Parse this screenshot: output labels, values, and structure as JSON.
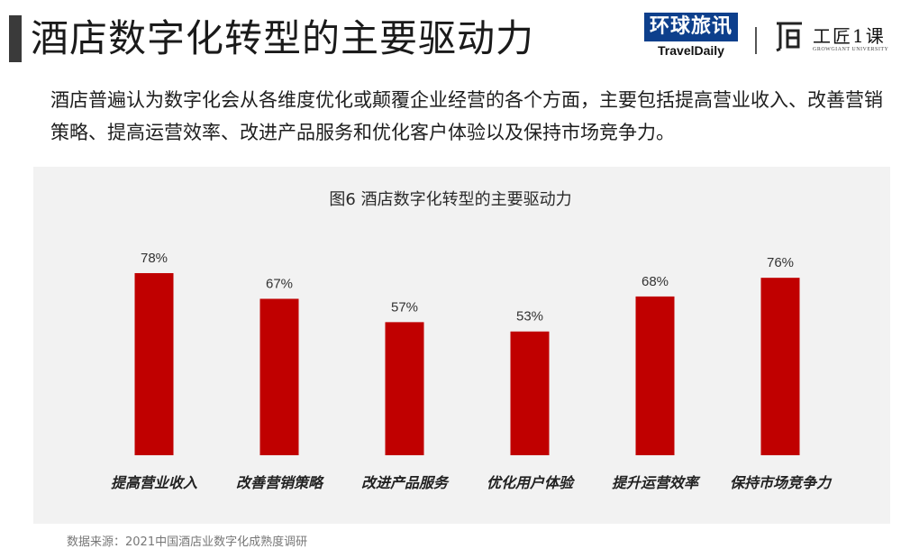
{
  "header": {
    "title": "酒店数字化转型的主要驱动力",
    "logo_travel_cn": "环球旅讯",
    "logo_travel_en": "TravelDaily",
    "logo_growgiant_cn": "工匠1课",
    "logo_growgiant_en": "GROWGIANT UNIVERSITY"
  },
  "description": "酒店普遍认为数字化会从各维度优化或颠覆企业经营的各个方面，主要包括提高营业收入、改善营销策略、提高运营效率、改进产品服务和优化客户体验以及保持市场竞争力。",
  "colors": {
    "bar": "#c00000",
    "panel": "#f2f2f2"
  },
  "chart_data": {
    "type": "bar",
    "title": "图6 酒店数字化转型的主要驱动力",
    "categories": [
      "提高营业收入",
      "改善营销策略",
      "改进产品服务",
      "优化用户体验",
      "提升运营效率",
      "保持市场竞争力"
    ],
    "values": [
      78,
      67,
      57,
      53,
      68,
      76
    ],
    "value_labels": [
      "78%",
      "67%",
      "57%",
      "53%",
      "68%",
      "76%"
    ],
    "ylim": [
      0,
      100
    ],
    "grid": false
  },
  "source": "数据来源：2021中国酒店业数字化成熟度调研"
}
